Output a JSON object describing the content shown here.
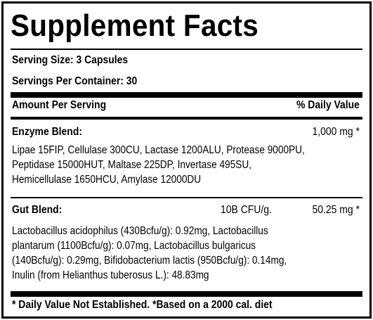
{
  "title": "Supplement Facts",
  "serving_size": "Serving Size:  3 Capsules",
  "servings_per_container": "Servings Per Container: 30",
  "header": {
    "amount_per_serving": "Amount Per Serving",
    "daily_value": "% Daily Value"
  },
  "enzyme_blend": {
    "name": "Enzyme Blend:",
    "amount": "1,000 mg *",
    "ingredients_lines": [
      "Lipae 15FIP, Cellulase 300CU, Lactase 1200ALU, Protease 9000PU,",
      "Peptidase 15000HUT, Maltase 225DP, Invertase 495SU,",
      "Hemicellulase 1650HCU, Amylase 12000DU"
    ]
  },
  "gut_blend": {
    "name": "Gut Blend:",
    "cfu": "10B CFU/g.",
    "amount": "50.25 mg *",
    "ingredients_lines": [
      "Lactobacillus acidophilus (430Bcfu/g): 0.92mg, Lactobacillus",
      "plantarum (1100Bcfu/g): 0.07mg, Lactobacillus bulgaricus",
      "(140Bcfu/g): 0.29mg, Bifidobacterium lactis (950Bcfu/g): 0.14mg,",
      "Inulin (from Helianthus tuberosus L.): 48.83mg"
    ]
  },
  "footnote": "* Daily Value Not Established. *Based on a 2000 cal. diet"
}
